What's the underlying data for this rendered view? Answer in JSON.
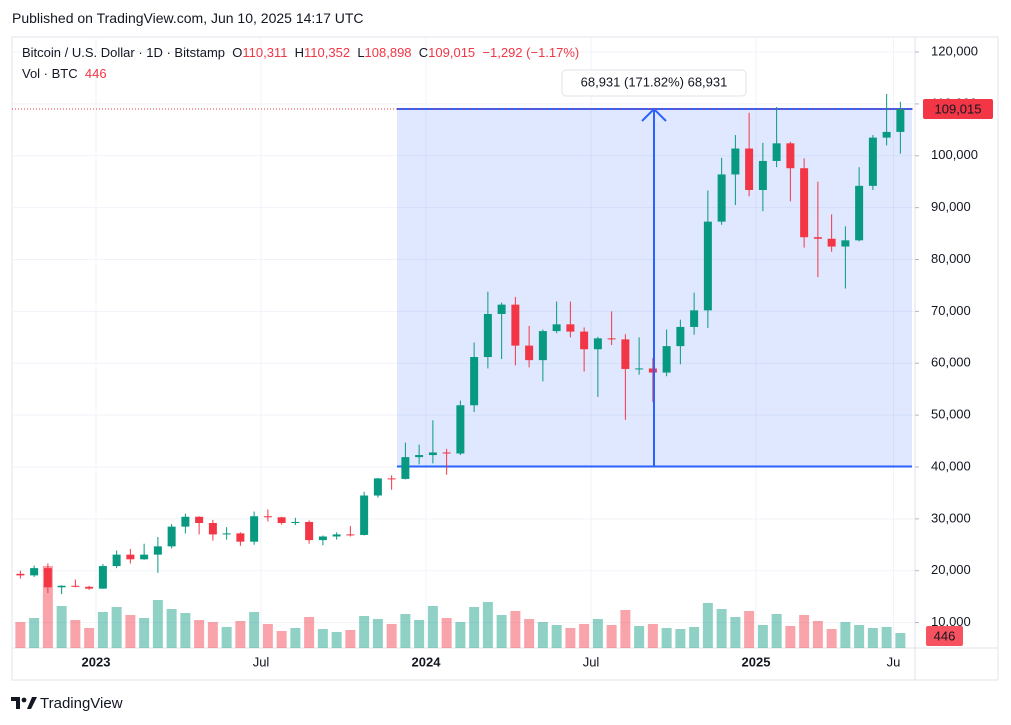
{
  "header": {
    "published": "Published on TradingView.com, Jun 10, 2025 14:17 UTC"
  },
  "legend": {
    "symbol": "Bitcoin / U.S. Dollar · 1D · Bitstamp",
    "ohlc": [
      {
        "key": "O",
        "value": "110,311"
      },
      {
        "key": "H",
        "value": "110,352"
      },
      {
        "key": "L",
        "value": "108,898"
      },
      {
        "key": "C",
        "value": "109,015"
      }
    ],
    "change": "−1,292 (−1.17%)",
    "volume_label": "Vol · BTC",
    "volume_last": "446"
  },
  "footer": {
    "brand": "TradingView"
  },
  "chart_data": {
    "type": "candlestick",
    "categories": [
      null,
      null,
      null,
      null,
      null,
      null,
      "2023",
      null,
      null,
      null,
      null,
      null,
      null,
      null,
      null,
      null,
      null,
      null,
      "Jul",
      null,
      null,
      null,
      null,
      null,
      null,
      null,
      null,
      null,
      null,
      null,
      "2024",
      null,
      null,
      null,
      null,
      null,
      null,
      null,
      null,
      null,
      null,
      null,
      "Jul",
      null,
      null,
      null,
      null,
      null,
      null,
      null,
      null,
      null,
      null,
      null,
      "2025",
      null,
      null,
      null,
      null,
      null,
      null,
      null,
      null,
      null,
      "Ju"
    ],
    "open": [
      19400,
      19100,
      20500,
      16800,
      17100,
      16900,
      16550,
      20900,
      23100,
      22200,
      23100,
      24700,
      28500,
      30400,
      29200,
      27000,
      27200,
      25600,
      30500,
      30300,
      29200,
      29400,
      25900,
      26600,
      27000,
      26900,
      34500,
      37800,
      37700,
      41900,
      42300,
      42800,
      42600,
      51900,
      61200,
      69500,
      71300,
      63400,
      60600,
      66200,
      67500,
      66100,
      62700,
      64800,
      64600,
      58900,
      59000,
      58200,
      63300,
      67000,
      70200,
      87300,
      96400,
      101400,
      93400,
      99000,
      102400,
      97600,
      84300,
      84000,
      82500,
      83700,
      94200,
      103500,
      104600
    ],
    "high": [
      20000,
      21000,
      21400,
      17200,
      18300,
      17100,
      21300,
      23900,
      24200,
      25200,
      26500,
      29000,
      31000,
      30500,
      29800,
      28400,
      27400,
      31400,
      31800,
      30400,
      30200,
      29700,
      26800,
      27400,
      28600,
      35200,
      37900,
      38400,
      44700,
      44300,
      49000,
      43500,
      52800,
      64000,
      73800,
      71700,
      72800,
      67200,
      66500,
      71900,
      71900,
      66900,
      65100,
      70000,
      65600,
      65000,
      61000,
      66500,
      68400,
      73600,
      93300,
      99600,
      104000,
      108300,
      102500,
      109400,
      102700,
      99500,
      95000,
      88700,
      86400,
      97800,
      104000,
      111900,
      110400
    ],
    "low": [
      18500,
      18800,
      15700,
      15500,
      16800,
      16300,
      16500,
      20500,
      21400,
      22100,
      19600,
      24300,
      27200,
      27000,
      25800,
      26000,
      24800,
      25000,
      29500,
      28900,
      28800,
      25200,
      24900,
      26000,
      26600,
      26800,
      34100,
      35600,
      37600,
      40500,
      40700,
      38500,
      42300,
      50600,
      59000,
      60800,
      59600,
      59200,
      56500,
      65800,
      65000,
      58400,
      53500,
      63500,
      49100,
      57800,
      52500,
      57500,
      59800,
      65500,
      66800,
      86700,
      90500,
      92200,
      89300,
      97800,
      91200,
      82300,
      76600,
      81500,
      74400,
      83500,
      93400,
      102000,
      100400
    ],
    "close": [
      19100,
      20500,
      16800,
      17100,
      16900,
      16550,
      20900,
      23100,
      22200,
      23100,
      24700,
      28500,
      30400,
      29200,
      27000,
      27200,
      25600,
      30500,
      30300,
      29200,
      29400,
      25900,
      26600,
      27000,
      26900,
      34500,
      37800,
      37700,
      41900,
      42300,
      42800,
      42600,
      51900,
      61200,
      69500,
      71300,
      63400,
      60600,
      66200,
      67500,
      66100,
      62700,
      64800,
      64600,
      58900,
      59000,
      58200,
      63300,
      67000,
      70200,
      87300,
      96400,
      101400,
      93400,
      99000,
      102400,
      97600,
      84300,
      84000,
      82500,
      83700,
      94200,
      103500,
      104600,
      109015
    ],
    "volume": [
      2600,
      3000,
      8200,
      4200,
      2800,
      2000,
      3600,
      4100,
      3300,
      3000,
      4800,
      3900,
      3500,
      2800,
      2600,
      2100,
      2700,
      3600,
      2400,
      1700,
      2000,
      3100,
      1900,
      1600,
      1800,
      3200,
      2900,
      2400,
      3400,
      2800,
      4200,
      3000,
      2600,
      4100,
      4600,
      3300,
      3700,
      2900,
      2600,
      2300,
      2000,
      2400,
      2900,
      2300,
      3800,
      2200,
      2400,
      2000,
      1900,
      2100,
      4500,
      3900,
      3100,
      3700,
      2300,
      3400,
      2200,
      3300,
      2700,
      1900,
      2600,
      2300,
      2000,
      2100,
      1500
    ],
    "vlim": [
      0,
      12000
    ],
    "ylim": [
      5100,
      122900
    ],
    "yticks": [
      {
        "value": 10000,
        "label": "10,000"
      },
      {
        "value": 20000,
        "label": "20,000"
      },
      {
        "value": 30000,
        "label": "30,000"
      },
      {
        "value": 40000,
        "label": "40,000"
      },
      {
        "value": 50000,
        "label": "50,000"
      },
      {
        "value": 60000,
        "label": "60,000"
      },
      {
        "value": 70000,
        "label": "70,000"
      },
      {
        "value": 80000,
        "label": "80,000"
      },
      {
        "value": 90000,
        "label": "90,000"
      },
      {
        "value": 100000,
        "label": "100,000"
      },
      {
        "value": 110000,
        "label": "110,000"
      },
      {
        "value": 120000,
        "label": "120,000"
      }
    ],
    "last_price": {
      "value": 109015,
      "label": "109,015"
    },
    "range": {
      "from": 40084,
      "to": 109015,
      "label": "68,931 (171.82%) 68,931"
    },
    "grid": true,
    "up_color": "#089981",
    "down_color": "#f23645",
    "range_color": "#2962ff"
  }
}
